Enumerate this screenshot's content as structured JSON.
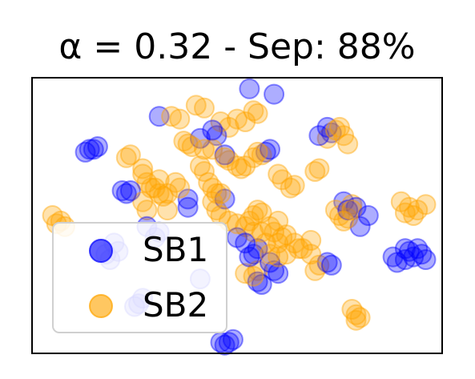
{
  "chart_data": {
    "type": "scatter",
    "title": "α = 0.32 - Sep: 88%",
    "xlabel": "",
    "ylabel": "",
    "xlim": [
      0,
      100
    ],
    "ylim": [
      0,
      100
    ],
    "grid": false,
    "legend_position": "lower-left",
    "series": [
      {
        "name": "SB1",
        "color": "#0000ff",
        "opacity": 0.32,
        "points": [
          [
            53,
            96
          ],
          [
            59,
            94
          ],
          [
            31,
            86
          ],
          [
            44,
            81
          ],
          [
            41,
            78
          ],
          [
            45,
            79
          ],
          [
            47,
            72
          ],
          [
            72,
            82
          ],
          [
            73,
            80
          ],
          [
            70,
            79
          ],
          [
            58,
            74
          ],
          [
            57,
            73
          ],
          [
            14,
            74
          ],
          [
            13,
            73
          ],
          [
            15,
            74
          ],
          [
            16,
            75
          ],
          [
            22,
            59
          ],
          [
            23,
            58
          ],
          [
            24,
            59
          ],
          [
            38,
            56
          ],
          [
            38,
            53
          ],
          [
            47,
            56
          ],
          [
            76,
            55
          ],
          [
            77,
            52
          ],
          [
            79,
            53
          ],
          [
            82,
            50
          ],
          [
            80,
            46
          ],
          [
            50,
            42
          ],
          [
            52,
            40
          ],
          [
            55,
            38
          ],
          [
            54,
            36
          ],
          [
            53,
            35
          ],
          [
            58,
            33
          ],
          [
            59,
            30
          ],
          [
            60,
            29
          ],
          [
            72,
            33
          ],
          [
            73,
            32
          ],
          [
            91,
            38
          ],
          [
            92,
            37
          ],
          [
            93,
            35
          ],
          [
            94,
            38
          ],
          [
            95,
            36
          ],
          [
            96,
            34
          ],
          [
            91,
            34
          ],
          [
            89,
            33
          ],
          [
            88,
            35
          ],
          [
            19,
            34
          ],
          [
            18,
            36
          ],
          [
            20,
            40
          ],
          [
            21,
            37
          ],
          [
            28,
            46
          ],
          [
            31,
            44
          ],
          [
            30,
            42
          ],
          [
            55,
            26
          ],
          [
            56,
            25
          ],
          [
            27,
            20
          ],
          [
            26,
            18
          ],
          [
            25,
            17
          ],
          [
            48,
            4
          ],
          [
            47,
            3
          ],
          [
            46,
            4
          ],
          [
            49,
            5
          ],
          [
            41,
            27
          ]
        ]
      },
      {
        "name": "SB2",
        "color": "#ffa500",
        "opacity": 0.32,
        "points": [
          [
            40,
            90
          ],
          [
            42,
            89
          ],
          [
            34,
            86
          ],
          [
            36,
            85
          ],
          [
            50,
            85
          ],
          [
            54,
            88
          ],
          [
            55,
            87
          ],
          [
            52,
            84
          ],
          [
            46,
            84
          ],
          [
            48,
            82
          ],
          [
            37,
            77
          ],
          [
            38,
            76
          ],
          [
            39,
            75
          ],
          [
            42,
            74
          ],
          [
            44,
            74
          ],
          [
            47,
            71
          ],
          [
            48,
            70
          ],
          [
            50,
            68
          ],
          [
            51,
            67
          ],
          [
            52,
            68
          ],
          [
            54,
            71
          ],
          [
            55,
            73
          ],
          [
            56,
            72
          ],
          [
            60,
            65
          ],
          [
            61,
            63
          ],
          [
            64,
            61
          ],
          [
            63,
            60
          ],
          [
            41,
            68
          ],
          [
            42,
            66
          ],
          [
            43,
            62
          ],
          [
            44,
            60
          ],
          [
            45,
            58
          ],
          [
            46,
            58
          ],
          [
            30,
            60
          ],
          [
            31,
            58
          ],
          [
            32,
            57
          ],
          [
            33,
            58
          ],
          [
            35,
            62
          ],
          [
            36,
            60
          ],
          [
            31,
            63
          ],
          [
            27,
            65
          ],
          [
            28,
            62
          ],
          [
            29,
            60
          ],
          [
            27,
            55
          ],
          [
            28,
            52
          ],
          [
            23,
            71
          ],
          [
            24,
            72
          ],
          [
            70,
            67
          ],
          [
            69,
            66
          ],
          [
            7,
            48
          ],
          [
            6,
            47
          ],
          [
            8,
            46
          ],
          [
            5,
            50
          ],
          [
            54,
            50
          ],
          [
            55,
            52
          ],
          [
            56,
            51
          ],
          [
            60,
            48
          ],
          [
            58,
            46
          ],
          [
            59,
            44
          ],
          [
            61,
            42
          ],
          [
            62,
            43
          ],
          [
            60,
            40
          ],
          [
            64,
            40
          ],
          [
            65,
            38
          ],
          [
            66,
            38
          ],
          [
            68,
            41
          ],
          [
            62,
            36
          ],
          [
            60,
            35
          ],
          [
            58,
            36
          ],
          [
            57,
            40
          ],
          [
            56,
            44
          ],
          [
            54,
            44
          ],
          [
            52,
            46
          ],
          [
            53,
            48
          ],
          [
            50,
            47
          ],
          [
            48,
            48
          ],
          [
            46,
            50
          ],
          [
            45,
            52
          ],
          [
            44,
            55
          ],
          [
            74,
            52
          ],
          [
            75,
            50
          ],
          [
            76,
            48
          ],
          [
            77,
            49
          ],
          [
            78,
            54
          ],
          [
            78,
            52
          ],
          [
            90,
            55
          ],
          [
            92,
            53
          ],
          [
            94,
            52
          ],
          [
            96,
            54
          ],
          [
            93,
            50
          ],
          [
            91,
            51
          ],
          [
            72,
            78
          ],
          [
            74,
            81
          ],
          [
            75,
            82
          ],
          [
            76,
            79
          ],
          [
            77,
            76
          ],
          [
            69,
            30
          ],
          [
            70,
            32
          ],
          [
            68,
            36
          ],
          [
            55,
            30
          ],
          [
            54,
            28
          ],
          [
            52,
            29
          ],
          [
            78,
            16
          ],
          [
            79,
            14
          ],
          [
            80,
            13
          ],
          [
            79,
            12
          ],
          [
            27,
            67
          ],
          [
            33,
            52
          ]
        ]
      }
    ]
  }
}
